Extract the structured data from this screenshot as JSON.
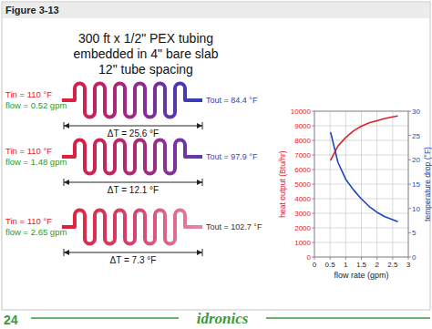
{
  "figure_label": "Figure 3-13",
  "diagram": {
    "title_lines": [
      "300 ft x 1/2\" PEX tubing",
      "embedded in 4\" bare slab",
      "12\" tube spacing"
    ],
    "runs": [
      {
        "tin": "Tin = 110 °F",
        "flow": "flow = 0.52 gpm",
        "tout": "Tout = 84.4 °F",
        "delta_t": "ΔT = 25.6 °F"
      },
      {
        "tin": "Tin = 110 °F",
        "flow": "flow = 1.48 gpm",
        "tout": "Tout = 97.9 °F",
        "delta_t": "ΔT = 12.1 °F"
      },
      {
        "tin": "Tin = 110 °F",
        "flow": "flow = 2.65 gpm",
        "tout": "Tout = 102.7 °F",
        "delta_t": "ΔT = 7.3 °F"
      }
    ]
  },
  "chart_data": {
    "type": "line",
    "xlabel": "flow rate (gpm)",
    "ylabel": "heat output (Btu/hr)",
    "y2label": "temperature drop (°F)",
    "x": [
      0.52,
      0.75,
      1.0,
      1.25,
      1.48,
      1.75,
      2.0,
      2.25,
      2.65
    ],
    "series": [
      {
        "color": "#e0202a",
        "values": [
          6650,
          7600,
          8200,
          8650,
          8950,
          9200,
          9350,
          9500,
          9670
        ]
      },
      {
        "color": "#1f45c0",
        "axis": "y2",
        "values": [
          25.6,
          19.5,
          16.0,
          13.8,
          12.1,
          10.4,
          9.2,
          8.3,
          7.3
        ]
      }
    ],
    "xlim": [
      0,
      3
    ],
    "xticks": [
      0,
      0.5,
      1,
      1.5,
      2,
      2.5,
      3
    ],
    "ylim": [
      0,
      10000
    ],
    "yticks": [
      0,
      1000,
      2000,
      3000,
      4000,
      5000,
      6000,
      7000,
      8000,
      9000,
      10000
    ],
    "y2lim": [
      0,
      30
    ],
    "y2ticks": [
      0,
      5,
      10,
      15,
      20,
      25,
      30
    ],
    "grid": true
  },
  "footer": {
    "page_number": "24",
    "logo": "idronics"
  }
}
